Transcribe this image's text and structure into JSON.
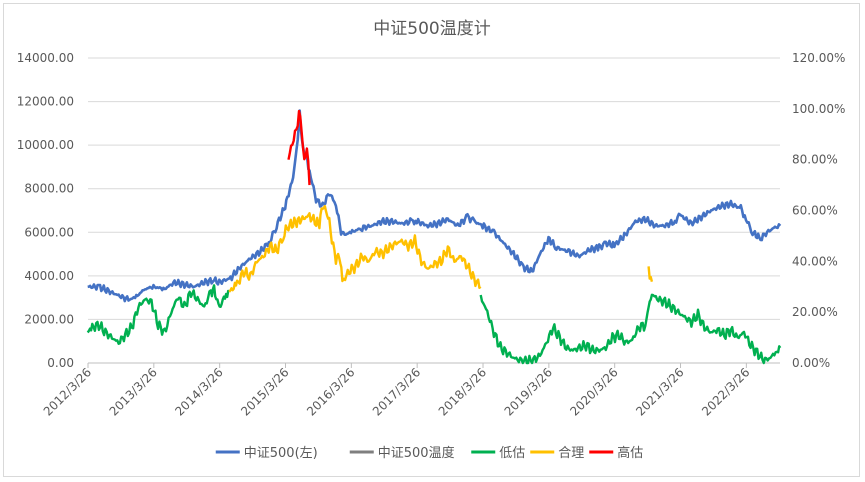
{
  "chart_data": {
    "type": "line",
    "title": "中证500温度计",
    "x_ticks": [
      "2012/3/26",
      "2013/3/26",
      "2014/3/26",
      "2015/3/26",
      "2016/3/26",
      "2017/3/26",
      "2018/3/26",
      "2019/3/26",
      "2020/3/26",
      "2021/3/26",
      "2022/3/26"
    ],
    "y_left_ticks": [
      "0.00",
      "2000.00",
      "4000.00",
      "6000.00",
      "8000.00",
      "10000.00",
      "12000.00",
      "14000.00"
    ],
    "y_right_ticks": [
      "0.00%",
      "20.00%",
      "40.00%",
      "60.00%",
      "80.00%",
      "100.00%",
      "120.00%"
    ],
    "y_left_lim": [
      0,
      14000
    ],
    "y_right_lim": [
      0,
      120
    ],
    "x_range": [
      "2012/3/26",
      "2022/9/30"
    ],
    "legend_position": "bottom",
    "grid": true,
    "colors": {
      "index": "#4472c4",
      "temperature": "#7f7f7f",
      "low": "#00b050",
      "fair": "#ffc000",
      "high": "#ff0000"
    },
    "series": [
      {
        "name": "中证500(左)",
        "axis": "left",
        "x": [
          2012.23,
          2012.4,
          2012.55,
          2012.7,
          2012.85,
          2012.95,
          2013.1,
          2013.23,
          2013.4,
          2013.55,
          2013.7,
          2013.85,
          2014.0,
          2014.15,
          2014.23,
          2014.4,
          2014.55,
          2014.7,
          2014.85,
          2015.0,
          2015.1,
          2015.23,
          2015.35,
          2015.42,
          2015.45,
          2015.5,
          2015.55,
          2015.6,
          2015.7,
          2015.8,
          2015.9,
          2016.0,
          2016.08,
          2016.15,
          2016.23,
          2016.4,
          2016.55,
          2016.7,
          2016.85,
          2017.0,
          2017.15,
          2017.23,
          2017.4,
          2017.55,
          2017.7,
          2017.85,
          2018.0,
          2018.1,
          2018.23,
          2018.4,
          2018.55,
          2018.7,
          2018.85,
          2018.98,
          2019.1,
          2019.23,
          2019.35,
          2019.55,
          2019.7,
          2019.85,
          2020.0,
          2020.1,
          2020.23,
          2020.4,
          2020.55,
          2020.7,
          2020.85,
          2021.0,
          2021.15,
          2021.23,
          2021.4,
          2021.55,
          2021.7,
          2021.85,
          2022.0,
          2022.15,
          2022.23,
          2022.33,
          2022.45,
          2022.55,
          2022.65,
          2022.75
        ],
        "y": [
          3500,
          3500,
          3300,
          3100,
          2900,
          3000,
          3400,
          3500,
          3400,
          3700,
          3600,
          3500,
          3700,
          3800,
          3700,
          3900,
          4400,
          4800,
          5100,
          5600,
          6300,
          7200,
          8500,
          10200,
          11500,
          9800,
          9500,
          8800,
          7500,
          7200,
          7800,
          7300,
          6000,
          5900,
          6000,
          6200,
          6300,
          6500,
          6500,
          6400,
          6500,
          6500,
          6300,
          6400,
          6600,
          6300,
          6700,
          6500,
          6300,
          6000,
          5500,
          5000,
          4400,
          4200,
          5000,
          5700,
          5300,
          5100,
          4900,
          5200,
          5300,
          5500,
          5400,
          5900,
          6500,
          6600,
          6300,
          6300,
          6500,
          6800,
          6400,
          6700,
          7000,
          7200,
          7300,
          7100,
          6600,
          6000,
          5700,
          6000,
          6200,
          6300
        ]
      },
      {
        "name": "中证500温度",
        "axis": "right",
        "x": [],
        "y": []
      },
      {
        "name": "低估",
        "axis": "right",
        "x": [
          2012.23,
          2012.3,
          2012.4,
          2012.5,
          2012.6,
          2012.7,
          2012.8,
          2012.9,
          2013.0,
          2013.1,
          2013.2,
          2013.3,
          2013.4,
          2013.5,
          2013.6,
          2013.7,
          2013.8,
          2013.9,
          2014.0,
          2014.1,
          2014.15,
          2014.2,
          2014.25,
          2014.3,
          2014.35,
          2014.38,
          2018.2,
          2018.3,
          2018.4,
          2018.5,
          2018.6,
          2018.7,
          2018.8,
          2018.9,
          2019.0,
          2019.1,
          2019.2,
          2019.3,
          2019.4,
          2019.5,
          2019.6,
          2019.7,
          2019.8,
          2019.9,
          2020.0,
          2020.1,
          2020.2,
          2020.3,
          2020.4,
          2020.5,
          2020.6,
          2020.7,
          2020.75,
          2020.8,
          2020.9,
          2021.0,
          2021.1,
          2021.2,
          2021.3,
          2021.4,
          2021.5,
          2021.6,
          2021.7,
          2021.8,
          2021.9,
          2022.0,
          2022.1,
          2022.2,
          2022.3,
          2022.4,
          2022.5,
          2022.6,
          2022.7,
          2022.75
        ],
        "y": [
          12,
          14,
          15,
          12,
          10,
          8,
          11,
          14,
          22,
          25,
          24,
          15,
          12,
          20,
          26,
          22,
          28,
          25,
          22,
          28,
          29,
          24,
          22,
          26,
          27,
          28,
          26,
          20,
          12,
          6,
          4,
          2,
          1,
          0.5,
          1,
          3,
          8,
          14,
          10,
          6,
          5,
          6,
          7,
          5,
          5,
          6,
          10,
          11,
          8,
          9,
          14,
          15,
          22,
          27,
          25,
          24,
          22,
          20,
          18,
          16,
          19,
          14,
          12,
          13,
          11,
          13,
          10,
          12,
          7,
          4,
          1,
          2,
          5,
          6
        ]
      },
      {
        "name": "合理",
        "axis": "right",
        "x": [
          2014.38,
          2014.5,
          2014.6,
          2014.7,
          2014.8,
          2014.9,
          2015.0,
          2015.1,
          2015.2,
          2015.28,
          2015.6,
          2015.7,
          2015.75,
          2015.8,
          2015.85,
          2015.9,
          2016.0,
          2016.05,
          2016.1,
          2016.2,
          2016.3,
          2016.4,
          2016.5,
          2016.6,
          2016.7,
          2016.8,
          2016.9,
          2017.0,
          2017.1,
          2017.2,
          2017.3,
          2017.4,
          2017.5,
          2017.6,
          2017.7,
          2017.8,
          2017.9,
          2018.0,
          2018.1,
          2018.2,
          2020.75,
          2020.8
        ],
        "y": [
          28,
          31,
          36,
          34,
          40,
          42,
          46,
          44,
          50,
          54,
          58,
          55,
          55,
          62,
          60,
          55,
          40,
          43,
          32,
          36,
          38,
          42,
          40,
          44,
          43,
          45,
          47,
          48,
          46,
          48,
          40,
          37,
          39,
          40,
          45,
          40,
          42,
          38,
          33,
          30,
          37,
          32
        ]
      },
      {
        "name": "高估",
        "axis": "right",
        "x": [
          2015.28,
          2015.32,
          2015.36,
          2015.4,
          2015.44,
          2015.48,
          2015.52,
          2015.56,
          2015.6
        ],
        "y": [
          80,
          85,
          88,
          92,
          98,
          93,
          78,
          86,
          70
        ]
      }
    ]
  }
}
